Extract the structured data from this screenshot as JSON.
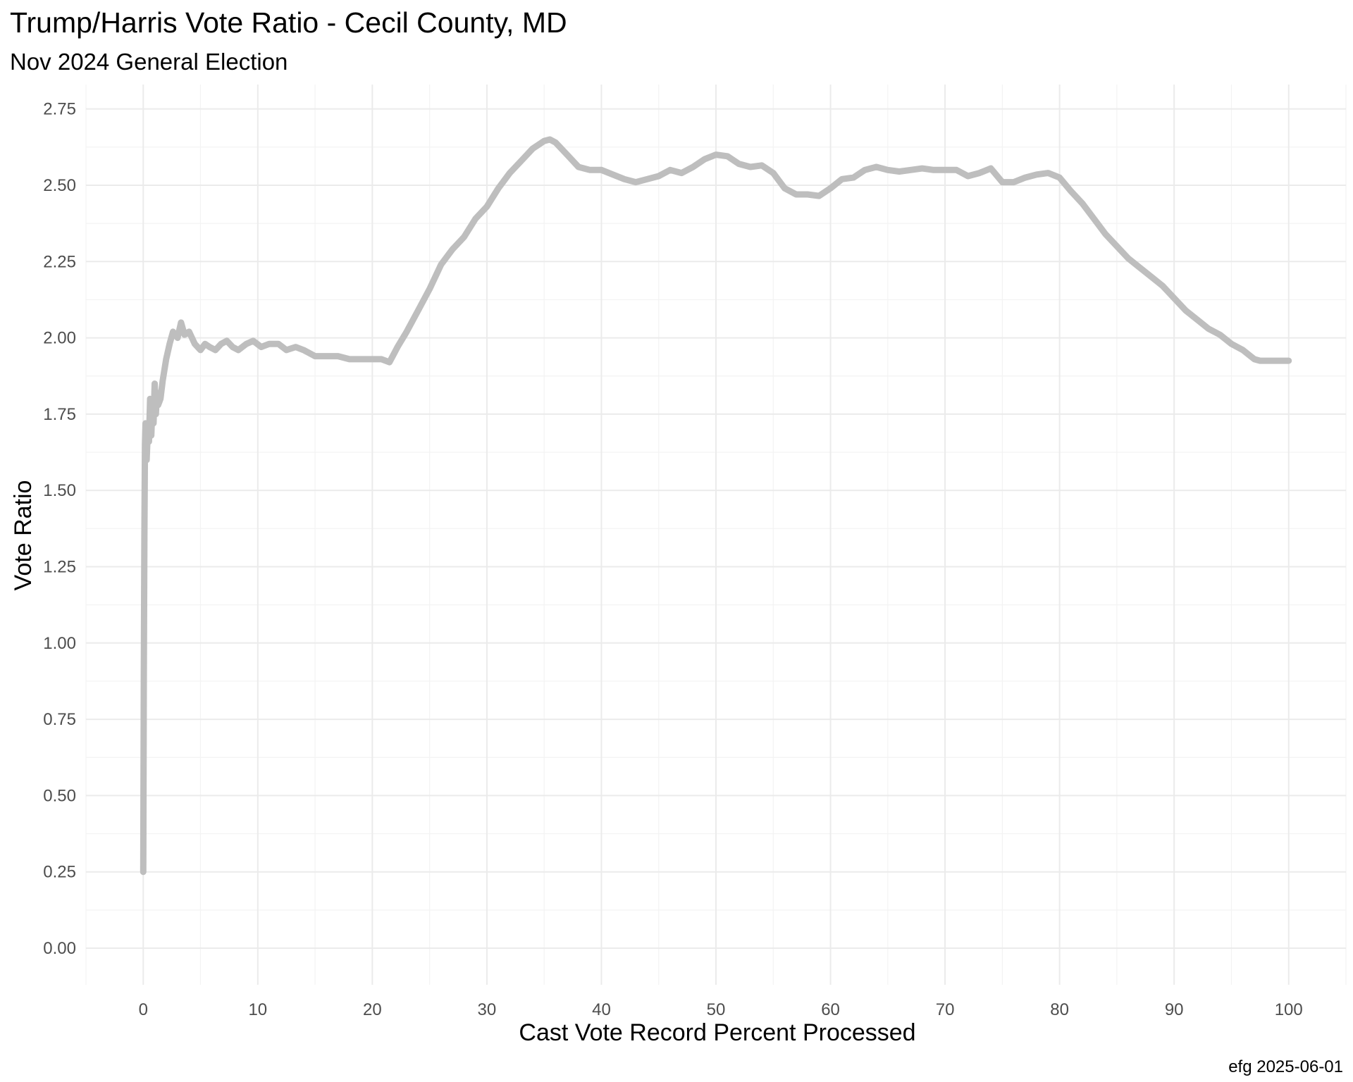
{
  "chart_data": {
    "type": "line",
    "title": "Trump/Harris Vote Ratio - Cecil County, MD",
    "subtitle": "Nov 2024 General Election",
    "xlabel": "Cast Vote Record Percent Processed",
    "ylabel": "Vote Ratio",
    "caption": "efg 2025-06-01",
    "xlim": [
      -5,
      105
    ],
    "ylim": [
      -0.12,
      2.83
    ],
    "x_ticks": [
      0,
      10,
      20,
      30,
      40,
      50,
      60,
      70,
      80,
      90,
      100
    ],
    "y_ticks": [
      0,
      0.25,
      0.5,
      0.75,
      1.0,
      1.25,
      1.5,
      1.75,
      2.0,
      2.25,
      2.5,
      2.75
    ],
    "x_tick_labels": [
      "0",
      "10",
      "20",
      "30",
      "40",
      "50",
      "60",
      "70",
      "80",
      "90",
      "100"
    ],
    "y_tick_labels": [
      "0.00",
      "0.25",
      "0.50",
      "0.75",
      "1.00",
      "1.25",
      "1.50",
      "1.75",
      "2.00",
      "2.25",
      "2.50",
      "2.75"
    ],
    "grid": true,
    "legend": "none",
    "series": [
      {
        "color": "#bebebe",
        "x": [
          0,
          0.05,
          0.1,
          0.15,
          0.2,
          0.3,
          0.4,
          0.5,
          0.6,
          0.7,
          0.8,
          0.9,
          1.0,
          1.1,
          1.2,
          1.3,
          1.5,
          1.7,
          2.0,
          2.3,
          2.6,
          3.0,
          3.3,
          3.6,
          4.0,
          4.5,
          5.0,
          5.4,
          5.8,
          6.3,
          6.8,
          7.3,
          7.8,
          8.3,
          9.0,
          9.6,
          10.3,
          11.0,
          11.8,
          12.5,
          13.3,
          14.0,
          15.0,
          16.0,
          17.0,
          18.0,
          19.0,
          20.0,
          20.8,
          21.5,
          22.2,
          23.0,
          24.0,
          25.0,
          26.0,
          27.0,
          28.0,
          29.0,
          30.0,
          31.0,
          32.0,
          33.0,
          34.0,
          35.0,
          35.5,
          36.0,
          37.0,
          38.0,
          39.0,
          40.0,
          41.0,
          42.0,
          43.0,
          44.0,
          45.0,
          46.0,
          47.0,
          48.0,
          49.0,
          50.0,
          51.0,
          52.0,
          53.0,
          54.0,
          55.0,
          56.0,
          57.0,
          58.0,
          59.0,
          60.0,
          61.0,
          62.0,
          63.0,
          64.0,
          65.0,
          66.0,
          67.0,
          68.0,
          69.0,
          70.0,
          71.0,
          72.0,
          73.0,
          74.0,
          75.0,
          76.0,
          77.0,
          78.0,
          79.0,
          80.0,
          81.0,
          82.0,
          83.0,
          84.0,
          85.0,
          86.0,
          87.0,
          88.0,
          89.0,
          90.0,
          91.0,
          92.0,
          93.0,
          94.0,
          95.0,
          96.0,
          97.0,
          97.5,
          98.0,
          99.0,
          100.0
        ],
        "values": [
          0.25,
          0.9,
          1.35,
          1.65,
          1.72,
          1.6,
          1.7,
          1.66,
          1.8,
          1.68,
          1.78,
          1.72,
          1.85,
          1.75,
          1.82,
          1.78,
          1.8,
          1.86,
          1.93,
          1.98,
          2.02,
          2.0,
          2.05,
          2.01,
          2.02,
          1.98,
          1.96,
          1.98,
          1.97,
          1.96,
          1.98,
          1.99,
          1.97,
          1.96,
          1.98,
          1.99,
          1.97,
          1.98,
          1.98,
          1.96,
          1.97,
          1.96,
          1.94,
          1.94,
          1.94,
          1.93,
          1.93,
          1.93,
          1.93,
          1.92,
          1.97,
          2.02,
          2.09,
          2.16,
          2.24,
          2.29,
          2.33,
          2.39,
          2.43,
          2.49,
          2.54,
          2.58,
          2.62,
          2.645,
          2.65,
          2.64,
          2.6,
          2.56,
          2.55,
          2.55,
          2.535,
          2.52,
          2.51,
          2.52,
          2.53,
          2.55,
          2.54,
          2.56,
          2.585,
          2.6,
          2.595,
          2.57,
          2.56,
          2.565,
          2.54,
          2.49,
          2.47,
          2.47,
          2.465,
          2.49,
          2.52,
          2.525,
          2.55,
          2.56,
          2.55,
          2.545,
          2.55,
          2.555,
          2.55,
          2.55,
          2.55,
          2.53,
          2.54,
          2.555,
          2.51,
          2.51,
          2.525,
          2.535,
          2.54,
          2.525,
          2.48,
          2.44,
          2.39,
          2.34,
          2.3,
          2.26,
          2.23,
          2.2,
          2.17,
          2.13,
          2.09,
          2.06,
          2.03,
          2.01,
          1.98,
          1.96,
          1.93,
          1.925,
          1.925,
          1.925,
          1.925
        ]
      }
    ]
  }
}
